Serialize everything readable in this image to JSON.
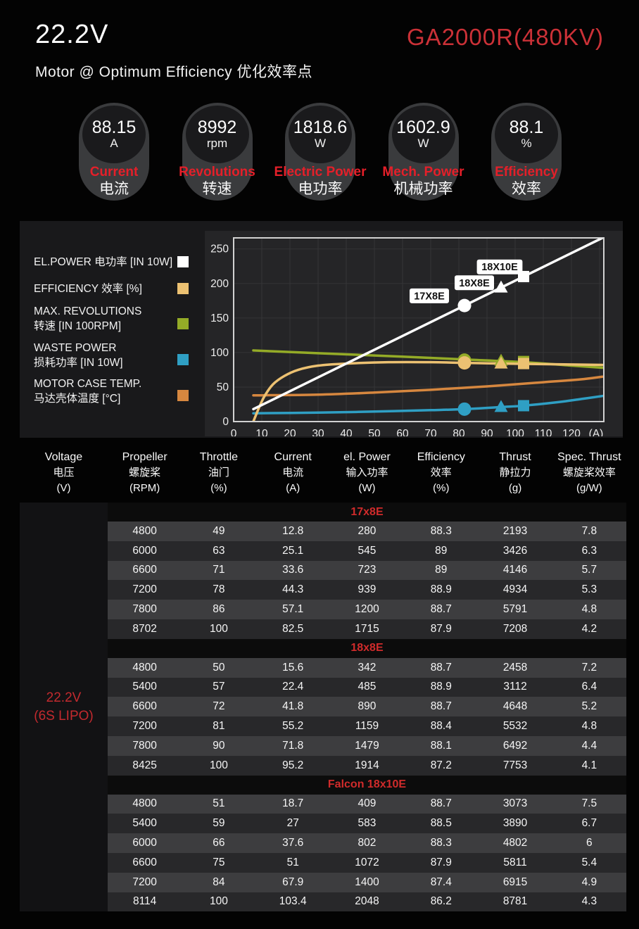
{
  "header": {
    "voltage_title": "22.2V",
    "model": "GA2000R(480KV)",
    "subtitle": "Motor @ Optimum Efficiency  优化效率点",
    "accent_red": "#cb3137"
  },
  "badges": [
    {
      "value": "88.15",
      "unit": "A",
      "label": "Current",
      "label_cn": "电流"
    },
    {
      "value": "8992",
      "unit": "rpm",
      "label": "Revolutions",
      "label_cn": "转速"
    },
    {
      "value": "1818.6",
      "unit": "W",
      "label": "Electric Power",
      "label_cn": "电功率"
    },
    {
      "value": "1602.9",
      "unit": "W",
      "label": "Mech. Power",
      "label_cn": "机械功率"
    },
    {
      "value": "88.1",
      "unit": "%",
      "label": "Efficiency",
      "label_cn": "效率"
    }
  ],
  "legend": [
    {
      "line1": "EL.POWER 电功率 [IN 10W]",
      "line2": "",
      "color": "#ffffff"
    },
    {
      "line1": "EFFICIENCY 效率 [%]",
      "line2": "",
      "color": "#ecc172"
    },
    {
      "line1": "MAX. REVOLUTIONS",
      "line2": "转速 [IN 100RPM]",
      "color": "#94ab27"
    },
    {
      "line1": "WASTE POWER",
      "line2": "损耗功率 [IN 10W]",
      "color": "#2f9fc4"
    },
    {
      "line1": "MOTOR CASE TEMP.",
      "line2": "马达壳体温度 [°C]",
      "color": "#d6873f"
    }
  ],
  "chart_data": {
    "type": "line",
    "title": "",
    "xlabel": "(A)",
    "ylabel": "",
    "xlim": [
      0,
      131.5
    ],
    "ylim": [
      0,
      266
    ],
    "x_ticks": [
      0,
      10,
      20,
      30,
      40,
      50,
      60,
      70,
      80,
      90,
      100,
      110,
      120
    ],
    "x_unit_label": "(A)",
    "y_ticks": [
      0,
      50,
      100,
      150,
      200,
      250
    ],
    "grid": {
      "x_step": 10,
      "y_step": 50,
      "color": "#353537"
    },
    "legend_position": "left",
    "series": [
      {
        "name": "MAX. REVOLUTIONS 转速 [IN 100RPM]",
        "color": "#94ab27",
        "width": 3.5,
        "points": [
          [
            7,
            103
          ],
          [
            30,
            99
          ],
          [
            60,
            94
          ],
          [
            82,
            90
          ],
          [
            103,
            86
          ],
          [
            120,
            81
          ],
          [
            131,
            78
          ]
        ]
      },
      {
        "name": "MOTOR CASE TEMP. 马达壳体温度 [°C]",
        "color": "#d6873f",
        "width": 3.5,
        "points": [
          [
            7,
            38
          ],
          [
            30,
            39
          ],
          [
            50,
            42
          ],
          [
            70,
            46
          ],
          [
            90,
            51
          ],
          [
            110,
            57
          ],
          [
            123,
            61
          ],
          [
            131,
            65
          ]
        ]
      },
      {
        "name": "WASTE POWER 损耗功率 [IN 10W]",
        "color": "#2f9fc4",
        "width": 3.5,
        "points": [
          [
            7,
            12
          ],
          [
            30,
            13
          ],
          [
            50,
            14.5
          ],
          [
            70,
            16.5
          ],
          [
            82,
            18
          ],
          [
            95,
            21
          ],
          [
            103,
            23
          ],
          [
            115,
            28
          ],
          [
            124,
            33
          ],
          [
            131,
            37
          ]
        ]
      },
      {
        "name": "EFFICIENCY 效率 [%]",
        "color": "#ecc172",
        "width": 3.5,
        "points": [
          [
            7,
            0
          ],
          [
            9,
            20
          ],
          [
            11,
            37
          ],
          [
            14,
            54
          ],
          [
            18,
            66
          ],
          [
            23,
            75
          ],
          [
            30,
            81
          ],
          [
            40,
            84
          ],
          [
            55,
            86
          ],
          [
            70,
            86
          ],
          [
            82,
            85
          ],
          [
            95,
            84
          ],
          [
            105,
            83.5
          ],
          [
            131,
            82
          ]
        ]
      },
      {
        "name": "EL.POWER 电功率 [IN 10W]",
        "color": "#ffffff",
        "width": 3.5,
        "points": [
          [
            7,
            18
          ],
          [
            40,
            84
          ],
          [
            82,
            168
          ],
          [
            103,
            210
          ],
          [
            131,
            266
          ]
        ]
      }
    ],
    "markers": [
      {
        "series": "revolutions",
        "shape": "circle",
        "x": 82,
        "y": 89,
        "color": "#94ab27"
      },
      {
        "series": "revolutions",
        "shape": "triangle",
        "x": 95,
        "y": 88,
        "color": "#94ab27"
      },
      {
        "series": "revolutions",
        "shape": "square",
        "x": 103,
        "y": 87,
        "color": "#94ab27"
      },
      {
        "series": "efficiency",
        "shape": "circle",
        "x": 82,
        "y": 85,
        "color": "#ecc172"
      },
      {
        "series": "efficiency",
        "shape": "triangle",
        "x": 95,
        "y": 84,
        "color": "#ecc172"
      },
      {
        "series": "efficiency",
        "shape": "square",
        "x": 103,
        "y": 84,
        "color": "#ecc172"
      },
      {
        "series": "waste_power",
        "shape": "circle",
        "x": 82,
        "y": 18,
        "color": "#2f9fc4"
      },
      {
        "series": "waste_power",
        "shape": "triangle",
        "x": 95,
        "y": 21,
        "color": "#2f9fc4"
      },
      {
        "series": "waste_power",
        "shape": "square",
        "x": 103,
        "y": 23,
        "color": "#2f9fc4"
      },
      {
        "series": "el_power",
        "shape": "circle",
        "x": 82,
        "y": 168,
        "color": "#ffffff"
      },
      {
        "series": "el_power",
        "shape": "triangle",
        "x": 95,
        "y": 194,
        "color": "#ffffff"
      },
      {
        "series": "el_power",
        "shape": "square",
        "x": 103,
        "y": 210,
        "color": "#ffffff"
      }
    ],
    "annotations": [
      {
        "text": "17X8E",
        "x": 69.5,
        "y": 182
      },
      {
        "text": "18X8E",
        "x": 85.5,
        "y": 201
      },
      {
        "text": "18X10E",
        "x": 94.5,
        "y": 224
      }
    ]
  },
  "table": {
    "headers": [
      {
        "en": "Voltage",
        "cn": "电压",
        "unit": "(V)"
      },
      {
        "en": "Propeller",
        "cn": "螺旋桨",
        "unit": "(RPM)"
      },
      {
        "en": "Throttle",
        "cn": "油门",
        "unit": "(%)"
      },
      {
        "en": "Current",
        "cn": "电流",
        "unit": "(A)"
      },
      {
        "en": "el. Power",
        "cn": "输入功率",
        "unit": "(W)"
      },
      {
        "en": "Efficiency",
        "cn": "效率",
        "unit": "(%)"
      },
      {
        "en": "Thrust",
        "cn": "静拉力",
        "unit": "(g)"
      },
      {
        "en": "Spec. Thrust",
        "cn": "螺旋桨效率",
        "unit": "(g/W)"
      }
    ],
    "voltage_label": {
      "line1": "22.2V",
      "line2": "(6S LIPO)"
    },
    "sections": [
      {
        "title": "17x8E",
        "rows": [
          [
            4800,
            49,
            12.8,
            280,
            88.3,
            2193,
            7.8
          ],
          [
            6000,
            63,
            25.1,
            545,
            89,
            3426,
            6.3
          ],
          [
            6600,
            71,
            33.6,
            723,
            89,
            4146,
            5.7
          ],
          [
            7200,
            78,
            44.3,
            939,
            88.9,
            4934,
            5.3
          ],
          [
            7800,
            86,
            57.1,
            1200,
            88.7,
            5791,
            4.8
          ],
          [
            8702,
            100,
            82.5,
            1715,
            87.9,
            7208,
            4.2
          ]
        ]
      },
      {
        "title": "18x8E",
        "rows": [
          [
            4800,
            50,
            15.6,
            342,
            88.7,
            2458,
            7.2
          ],
          [
            5400,
            57,
            22.4,
            485,
            88.9,
            3112,
            6.4
          ],
          [
            6600,
            72,
            41.8,
            890,
            88.7,
            4648,
            5.2
          ],
          [
            7200,
            81,
            55.2,
            1159,
            88.4,
            5532,
            4.8
          ],
          [
            7800,
            90,
            71.8,
            1479,
            88.1,
            6492,
            4.4
          ],
          [
            8425,
            100,
            95.2,
            1914,
            87.2,
            7753,
            4.1
          ]
        ]
      },
      {
        "title": "Falcon 18x10E",
        "rows": [
          [
            4800,
            51,
            18.7,
            409,
            88.7,
            3073,
            7.5
          ],
          [
            5400,
            59,
            27,
            583,
            88.5,
            3890,
            6.7
          ],
          [
            6000,
            66,
            37.6,
            802,
            88.3,
            4802,
            6
          ],
          [
            6600,
            75,
            51,
            1072,
            87.9,
            5811,
            5.4
          ],
          [
            7200,
            84,
            67.9,
            1400,
            87.4,
            6915,
            4.9
          ],
          [
            8114,
            100,
            103.4,
            2048,
            86.2,
            8781,
            4.3
          ]
        ]
      }
    ]
  }
}
